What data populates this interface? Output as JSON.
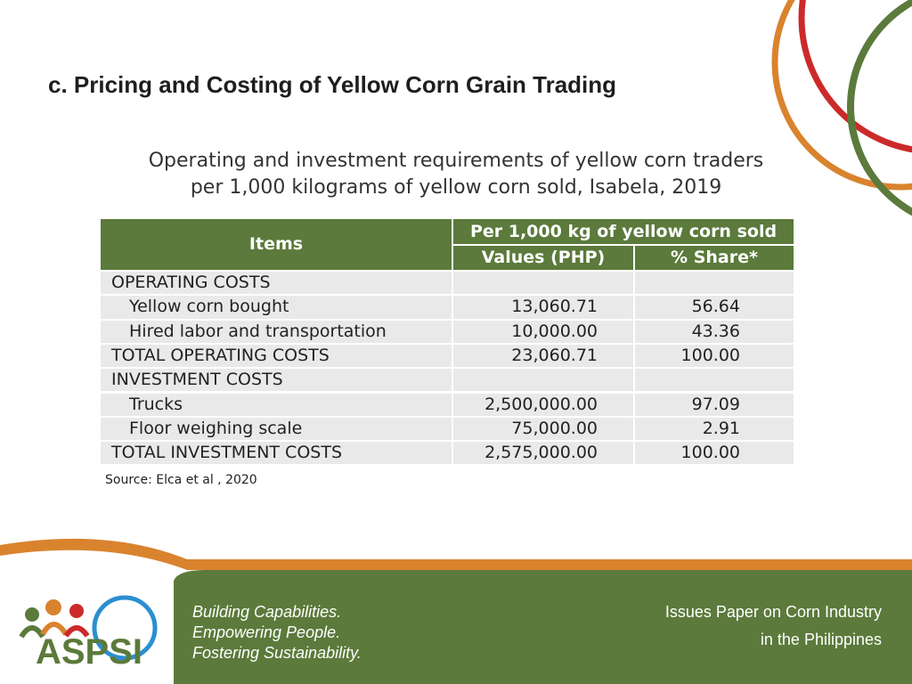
{
  "title": "c. Pricing and Costing of Yellow Corn Grain Trading",
  "caption": [
    "Operating and investment requirements of yellow corn traders",
    "per 1,000 kilograms of yellow corn sold, Isabela, 2019"
  ],
  "table": {
    "header": {
      "items": "Items",
      "group": "Per 1,000 kg of yellow corn sold",
      "value": "Values (PHP)",
      "share": "% Share*"
    },
    "sections": [
      {
        "heading": "OPERATING COSTS",
        "items": [
          {
            "label": "Yellow corn bought",
            "value": "13,060.71",
            "share": "56.64"
          },
          {
            "label": "Hired labor and transportation",
            "value": "10,000.00",
            "share": "43.36"
          }
        ],
        "total": {
          "label": "TOTAL OPERATING COSTS",
          "value": "23,060.71",
          "share": "100.00"
        }
      },
      {
        "heading": "INVESTMENT COSTS",
        "items": [
          {
            "label": "Trucks",
            "value": "2,500,000.00",
            "share": "97.09"
          },
          {
            "label": "Floor weighing scale",
            "value": "75,000.00",
            "share": "2.91"
          }
        ],
        "total": {
          "label": "TOTAL INVESTMENT COSTS",
          "value": "2,575,000.00",
          "share": "100.00"
        }
      }
    ]
  },
  "source": "Source: Elca et al , 2020",
  "footer": {
    "logo": "ASPSI",
    "taglines": [
      "Building Capabilities.",
      "Empowering People.",
      "Fostering Sustainability."
    ],
    "publication": [
      "Issues Paper on Corn Industry",
      "in the Philippines"
    ]
  }
}
